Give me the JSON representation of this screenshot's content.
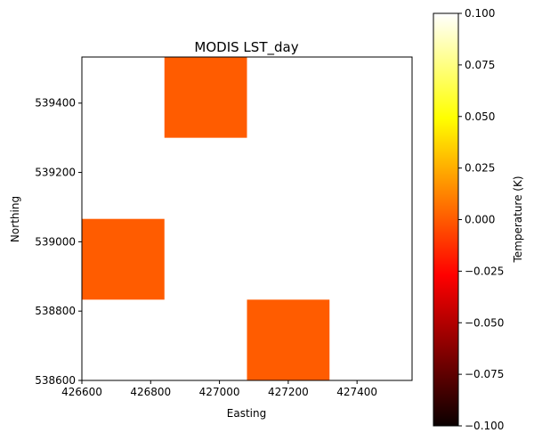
{
  "chart_data": {
    "type": "heatmap",
    "title": "MODIS LST_day",
    "xlabel": "Easting",
    "ylabel": "Northing",
    "xlim": [
      426600,
      427560
    ],
    "ylim": [
      538600,
      539533
    ],
    "x_ticks": [
      "426600",
      "426800",
      "427000",
      "427200",
      "427400"
    ],
    "y_ticks": [
      "538600",
      "538800",
      "539000",
      "539200",
      "539400"
    ],
    "grid": false,
    "colormap": "hot",
    "no_data_color": "#ffffff",
    "cells": [
      {
        "x0": 426840,
        "x1": 427080,
        "y0": 539300,
        "y1": 539533,
        "value": 0.0,
        "color": "#ff5c00"
      },
      {
        "x0": 426600,
        "x1": 426840,
        "y0": 538833,
        "y1": 539066,
        "value": 0.0,
        "color": "#ff5c00"
      },
      {
        "x0": 427080,
        "x1": 427320,
        "y0": 538600,
        "y1": 538833,
        "value": 0.0,
        "color": "#ff5c00"
      }
    ],
    "colorbar": {
      "label": "Temperature (K)",
      "min": -0.1,
      "max": 0.1,
      "ticks": [
        "0.100",
        "0.075",
        "0.050",
        "0.025",
        "0.000",
        "−0.025",
        "−0.050",
        "−0.075",
        "−0.100"
      ]
    }
  }
}
